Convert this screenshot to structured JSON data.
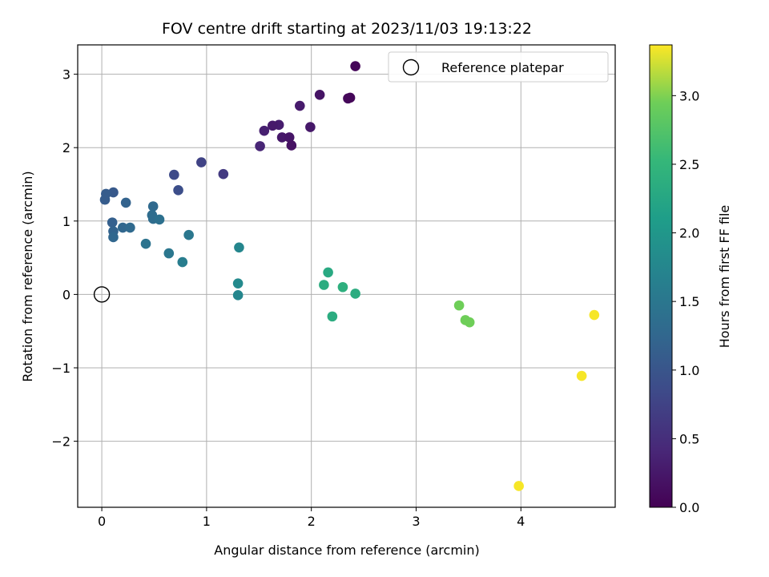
{
  "chart_data": {
    "type": "scatter",
    "title": "FOV centre drift starting at 2023/11/03 19:13:22",
    "xlabel": "Angular distance from reference (arcmin)",
    "ylabel": "Rotation from reference (arcmin)",
    "xlim": [
      -0.23,
      4.9
    ],
    "ylim": [
      -2.9,
      3.4
    ],
    "xticks": [
      0,
      1,
      2,
      3,
      4
    ],
    "xtick_labels": [
      "0",
      "1",
      "2",
      "3",
      "4"
    ],
    "yticks": [
      -2,
      -1,
      0,
      1,
      2,
      3
    ],
    "ytick_labels": [
      "−2",
      "−1",
      "0",
      "1",
      "2",
      "3"
    ],
    "grid": true,
    "legend": {
      "position": "top-right",
      "entries": [
        "Reference platepar"
      ]
    },
    "reference_point": {
      "x": 0,
      "y": 0
    },
    "colorbar": {
      "label": "Hours from first FF file",
      "min": 0.0,
      "max": 3.37,
      "colormap": "viridis",
      "ticks": [
        0.0,
        0.5,
        1.0,
        1.5,
        2.0,
        2.5,
        3.0
      ],
      "tick_labels": [
        "0.0",
        "0.5",
        "1.0",
        "1.5",
        "2.0",
        "2.5",
        "3.0"
      ]
    },
    "points": [
      {
        "x": 2.42,
        "y": 3.11,
        "c": 0.05
      },
      {
        "x": 2.08,
        "y": 2.72,
        "c": 0.2
      },
      {
        "x": 2.35,
        "y": 2.67,
        "c": 0.08
      },
      {
        "x": 2.37,
        "y": 2.68,
        "c": 0.06
      },
      {
        "x": 1.89,
        "y": 2.57,
        "c": 0.28
      },
      {
        "x": 1.69,
        "y": 2.31,
        "c": 0.3
      },
      {
        "x": 1.63,
        "y": 2.3,
        "c": 0.27
      },
      {
        "x": 1.55,
        "y": 2.23,
        "c": 0.33
      },
      {
        "x": 1.99,
        "y": 2.28,
        "c": 0.25
      },
      {
        "x": 1.72,
        "y": 2.14,
        "c": 0.25
      },
      {
        "x": 1.79,
        "y": 2.14,
        "c": 0.22
      },
      {
        "x": 1.81,
        "y": 2.03,
        "c": 0.18
      },
      {
        "x": 1.51,
        "y": 2.02,
        "c": 0.4
      },
      {
        "x": 0.95,
        "y": 1.8,
        "c": 0.75
      },
      {
        "x": 1.16,
        "y": 1.64,
        "c": 0.65
      },
      {
        "x": 0.69,
        "y": 1.63,
        "c": 0.85
      },
      {
        "x": 0.73,
        "y": 1.42,
        "c": 0.9
      },
      {
        "x": 0.11,
        "y": 1.39,
        "c": 1.05
      },
      {
        "x": 0.04,
        "y": 1.37,
        "c": 1.1
      },
      {
        "x": 0.03,
        "y": 1.29,
        "c": 1.1
      },
      {
        "x": 0.23,
        "y": 1.25,
        "c": 1.2
      },
      {
        "x": 0.49,
        "y": 1.2,
        "c": 1.3
      },
      {
        "x": 0.48,
        "y": 1.08,
        "c": 1.35
      },
      {
        "x": 0.49,
        "y": 1.03,
        "c": 1.35
      },
      {
        "x": 0.55,
        "y": 1.02,
        "c": 1.4
      },
      {
        "x": 0.1,
        "y": 0.98,
        "c": 1.15
      },
      {
        "x": 0.11,
        "y": 0.86,
        "c": 1.2
      },
      {
        "x": 0.2,
        "y": 0.91,
        "c": 1.25
      },
      {
        "x": 0.27,
        "y": 0.91,
        "c": 1.3
      },
      {
        "x": 0.11,
        "y": 0.78,
        "c": 1.25
      },
      {
        "x": 0.83,
        "y": 0.81,
        "c": 1.5
      },
      {
        "x": 0.42,
        "y": 0.69,
        "c": 1.45
      },
      {
        "x": 0.64,
        "y": 0.56,
        "c": 1.5
      },
      {
        "x": 0.77,
        "y": 0.44,
        "c": 1.6
      },
      {
        "x": 1.31,
        "y": 0.64,
        "c": 1.75
      },
      {
        "x": 1.3,
        "y": 0.15,
        "c": 1.8
      },
      {
        "x": 1.3,
        "y": -0.01,
        "c": 1.75
      },
      {
        "x": 2.16,
        "y": 0.3,
        "c": 2.3
      },
      {
        "x": 2.12,
        "y": 0.13,
        "c": 2.35
      },
      {
        "x": 2.3,
        "y": 0.1,
        "c": 2.4
      },
      {
        "x": 2.42,
        "y": 0.01,
        "c": 2.35
      },
      {
        "x": 2.2,
        "y": -0.3,
        "c": 2.35
      },
      {
        "x": 3.41,
        "y": -0.15,
        "c": 2.95
      },
      {
        "x": 3.47,
        "y": -0.35,
        "c": 2.95
      },
      {
        "x": 3.51,
        "y": -0.38,
        "c": 2.95
      },
      {
        "x": 4.7,
        "y": -0.28,
        "c": 3.35
      },
      {
        "x": 4.58,
        "y": -1.11,
        "c": 3.35
      },
      {
        "x": 3.98,
        "y": -2.61,
        "c": 3.35
      }
    ]
  }
}
